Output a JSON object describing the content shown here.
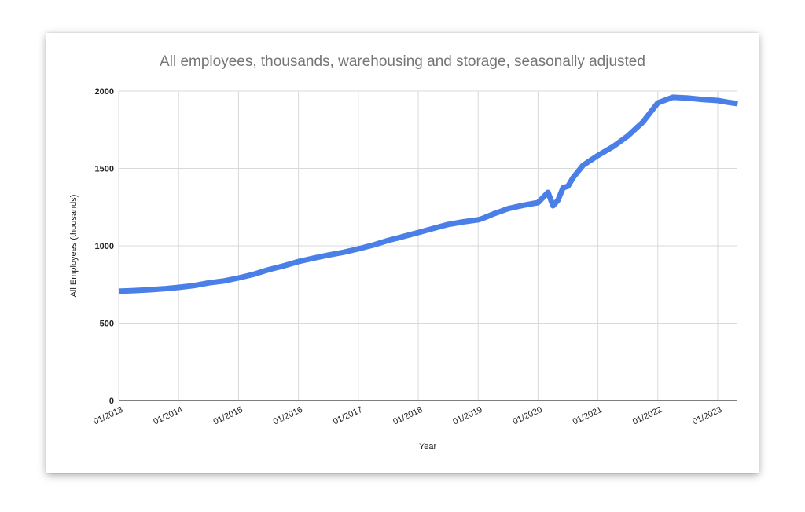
{
  "chart_data": {
    "type": "line",
    "title": "All employees, thousands, warehousing and storage, seasonally adjusted",
    "xlabel": "Year",
    "ylabel": "All Employees (thousands)",
    "ylim": [
      0,
      2000
    ],
    "yticks": [
      "0",
      "500",
      "1000",
      "1500",
      "2000"
    ],
    "xticks": [
      "01/2013",
      "01/2014",
      "01/2015",
      "01/2016",
      "01/2017",
      "01/2018",
      "01/2019",
      "01/2020",
      "01/2021",
      "01/2022",
      "01/2023"
    ],
    "grid": true,
    "legend": "none",
    "series": [
      {
        "name": "All Employees (thousands)",
        "color": "#4a7fe8",
        "x": [
          "01/2013",
          "04/2013",
          "07/2013",
          "10/2013",
          "01/2014",
          "04/2014",
          "07/2014",
          "10/2014",
          "01/2015",
          "04/2015",
          "07/2015",
          "10/2015",
          "01/2016",
          "04/2016",
          "07/2016",
          "10/2016",
          "01/2017",
          "04/2017",
          "07/2017",
          "10/2017",
          "01/2018",
          "04/2018",
          "07/2018",
          "10/2018",
          "01/2019",
          "02/2019",
          "04/2019",
          "07/2019",
          "10/2019",
          "01/2020",
          "03/2020",
          "04/2020",
          "05/2020",
          "06/2020",
          "07/2020",
          "08/2020",
          "10/2020",
          "01/2021",
          "04/2021",
          "07/2021",
          "10/2021",
          "01/2022",
          "04/2022",
          "07/2022",
          "10/2022",
          "01/2023",
          "03/2023",
          "05/2023"
        ],
        "values": [
          706,
          710,
          715,
          722,
          731,
          742,
          760,
          772,
          792,
          815,
          845,
          870,
          898,
          920,
          940,
          958,
          980,
          1005,
          1035,
          1060,
          1086,
          1112,
          1138,
          1155,
          1168,
          1178,
          1205,
          1240,
          1262,
          1279,
          1345,
          1259,
          1295,
          1375,
          1385,
          1440,
          1520,
          1584,
          1640,
          1710,
          1800,
          1924,
          1960,
          1955,
          1945,
          1939,
          1928,
          1919
        ]
      }
    ]
  }
}
